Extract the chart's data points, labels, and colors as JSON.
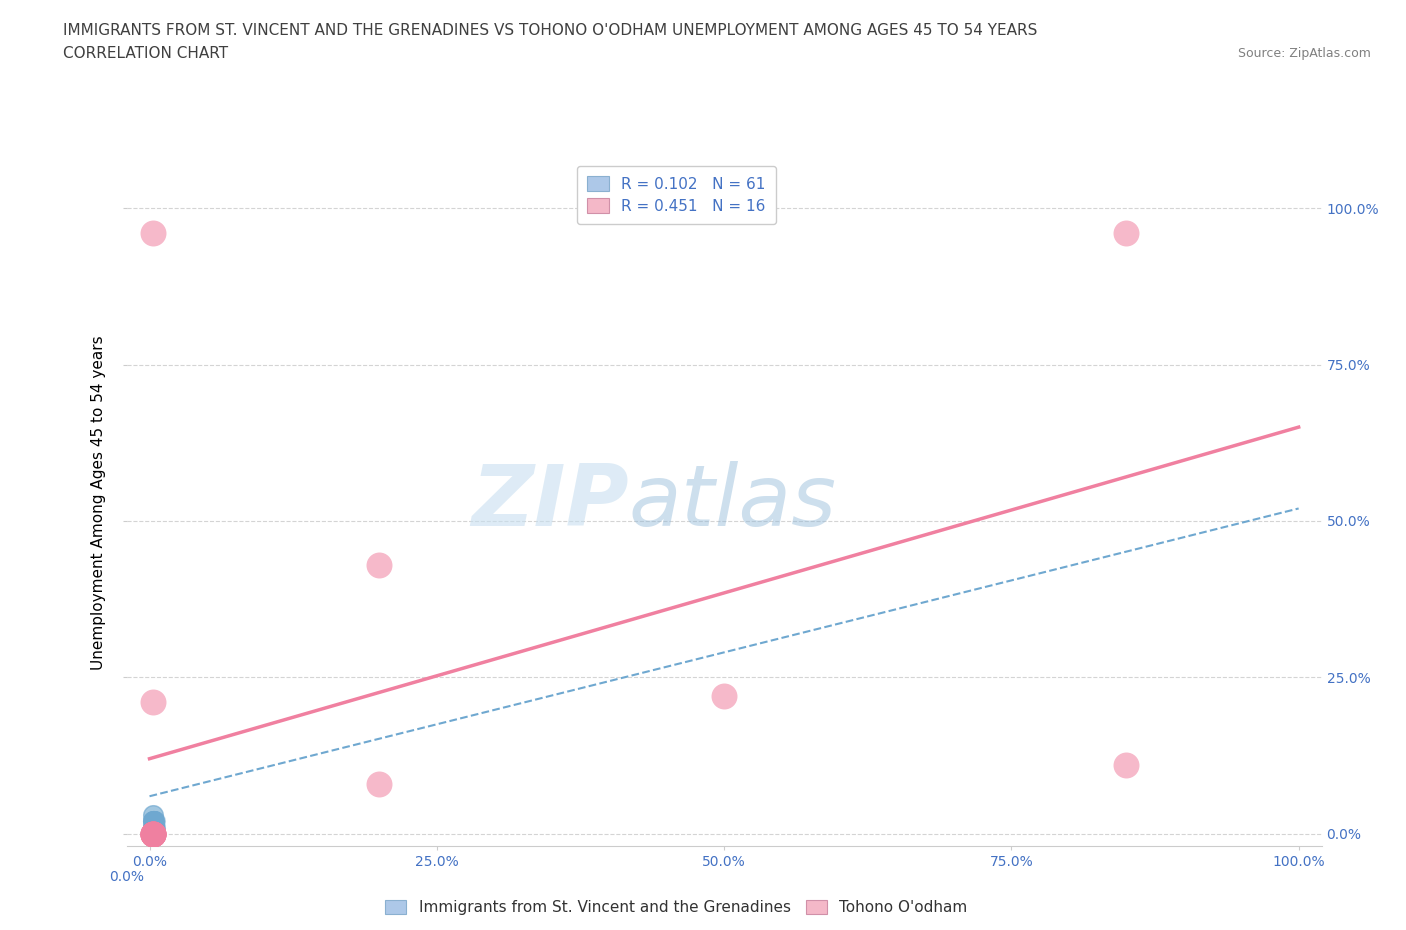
{
  "title_line1": "IMMIGRANTS FROM ST. VINCENT AND THE GRENADINES VS TOHONO O'ODHAM UNEMPLOYMENT AMONG AGES 45 TO 54 YEARS",
  "title_line2": "CORRELATION CHART",
  "source": "Source: ZipAtlas.com",
  "ylabel": "Unemployment Among Ages 45 to 54 years",
  "xlim": [
    -0.02,
    1.02
  ],
  "ylim": [
    -0.02,
    1.08
  ],
  "xticks": [
    0.0,
    0.25,
    0.5,
    0.75,
    1.0
  ],
  "yticks": [
    0.0,
    0.25,
    0.5,
    0.75,
    1.0
  ],
  "xtick_labels": [
    "0.0%",
    "25.0%",
    "50.0%",
    "75.0%",
    "100.0%"
  ],
  "right_ytick_labels": [
    "0.0%",
    "25.0%",
    "50.0%",
    "75.0%",
    "100.0%"
  ],
  "blue_series": {
    "label": "Immigrants from St. Vincent and the Grenadines",
    "R": 0.102,
    "N": 61,
    "legend_color": "#adc8e8",
    "marker_color": "#6fa8d0",
    "x": [
      0.003,
      0.003,
      0.004,
      0.003,
      0.004,
      0.005,
      0.003,
      0.004,
      0.003,
      0.004,
      0.003,
      0.004,
      0.005,
      0.003,
      0.004,
      0.003,
      0.004,
      0.003,
      0.004,
      0.005,
      0.003,
      0.004,
      0.003,
      0.004,
      0.003,
      0.005,
      0.004,
      0.003,
      0.004,
      0.003,
      0.004,
      0.003,
      0.004,
      0.005,
      0.003,
      0.004,
      0.003,
      0.004,
      0.003,
      0.004,
      0.003,
      0.004,
      0.005,
      0.003,
      0.004,
      0.003,
      0.004,
      0.003,
      0.004,
      0.005,
      0.003,
      0.004,
      0.003,
      0.004,
      0.003,
      0.004,
      0.003,
      0.004,
      0.003,
      0.004,
      0.003
    ],
    "y": [
      0.0,
      0.02,
      0.0,
      0.01,
      0.0,
      0.02,
      0.0,
      0.01,
      0.0,
      0.0,
      0.03,
      0.0,
      0.01,
      0.0,
      0.02,
      0.0,
      0.0,
      0.01,
      0.0,
      0.0,
      0.02,
      0.0,
      0.0,
      0.01,
      0.0,
      0.0,
      0.02,
      0.0,
      0.0,
      0.01,
      0.0,
      0.02,
      0.0,
      0.0,
      0.03,
      0.0,
      0.01,
      0.0,
      0.0,
      0.02,
      0.0,
      0.0,
      0.01,
      0.0,
      0.02,
      0.0,
      0.0,
      0.01,
      0.0,
      0.0,
      0.02,
      0.0,
      0.0,
      0.01,
      0.0,
      0.0,
      0.02,
      0.0,
      0.0,
      0.01,
      0.0
    ],
    "trend_x": [
      0.0,
      1.0
    ],
    "trend_y": [
      0.06,
      0.52
    ]
  },
  "pink_series": {
    "label": "Tohono O'odham",
    "R": 0.451,
    "N": 16,
    "legend_color": "#f4b8c8",
    "marker_color": "#f080a0",
    "x": [
      0.003,
      0.003,
      0.003,
      0.003,
      0.003,
      0.003,
      0.003,
      0.003,
      0.003,
      0.003,
      0.003,
      0.2,
      0.5,
      0.2,
      0.85,
      0.85
    ],
    "y": [
      0.96,
      0.21,
      0.0,
      0.0,
      0.0,
      0.0,
      0.0,
      0.0,
      0.0,
      0.0,
      0.0,
      0.43,
      0.22,
      0.08,
      0.11,
      0.96
    ],
    "trend_x": [
      0.0,
      1.0
    ],
    "trend_y": [
      0.12,
      0.65
    ]
  },
  "watermark_zip": "ZIP",
  "watermark_atlas": "atlas",
  "background_color": "#ffffff",
  "grid_color": "#d0d0d0",
  "axis_color": "#4472c4",
  "title_color": "#404040",
  "source_color": "#808080",
  "title_fontsize": 11,
  "axis_label_fontsize": 11,
  "tick_fontsize": 10,
  "legend_fontsize": 11
}
